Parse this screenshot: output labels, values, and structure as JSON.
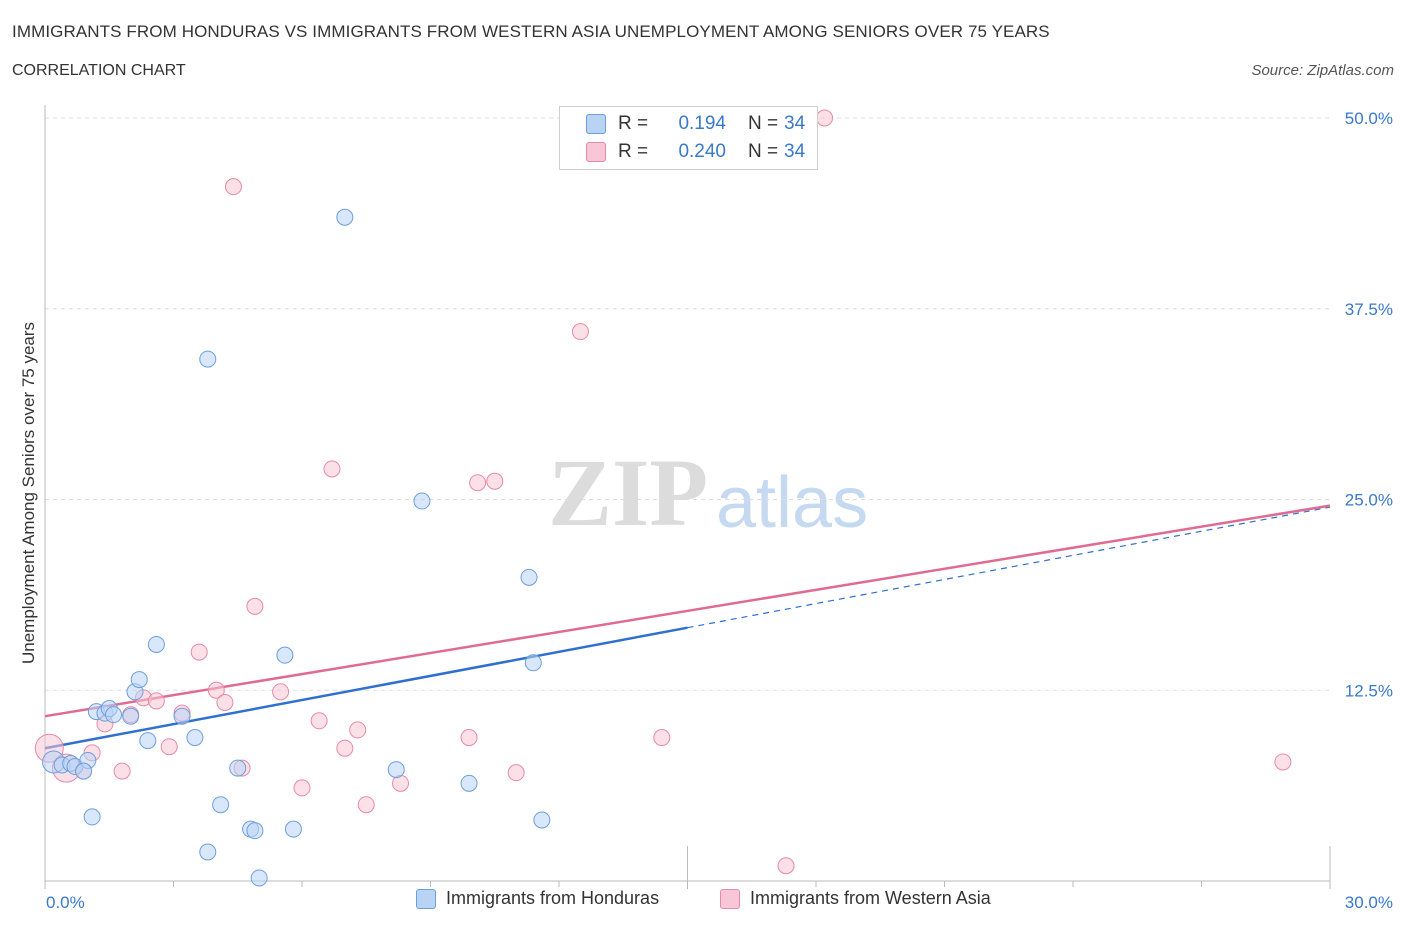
{
  "header": {
    "title": "IMMIGRANTS FROM HONDURAS VS IMMIGRANTS FROM WESTERN ASIA UNEMPLOYMENT AMONG SENIORS OVER 75 YEARS",
    "subtitle": "CORRELATION CHART",
    "source": "Source: ZipAtlas.com"
  },
  "watermark": {
    "zip": "ZIP",
    "atlas": "atlas"
  },
  "legend": {
    "r_label": "R =",
    "n_label": "N =",
    "series1": {
      "r": "0.194",
      "n": "34"
    },
    "series2": {
      "r": "0.240",
      "n": "34"
    }
  },
  "colors": {
    "blue_fill": "#b9d3f5",
    "blue_stroke": "#6d9fdc",
    "blue_line": "#2f6fcf",
    "pink_fill": "#f8c6d6",
    "pink_stroke": "#e68aa8",
    "pink_line": "#e06b92",
    "grid": "#dddddd",
    "tick_text": "#3a78c9"
  },
  "chart_data": {
    "type": "scatter",
    "title": "IMMIGRANTS FROM HONDURAS VS IMMIGRANTS FROM WESTERN ASIA UNEMPLOYMENT AMONG SENIORS OVER 75 YEARS",
    "xlabel": "",
    "ylabel": "Unemployment Among Seniors over 75 years",
    "xlim": [
      0,
      30
    ],
    "ylim": [
      0,
      50
    ],
    "x_tick_labels": [
      "0.0%",
      "30.0%"
    ],
    "y_ticks": [
      12.5,
      25.0,
      37.5,
      50.0
    ],
    "y_tick_labels": [
      "12.5%",
      "25.0%",
      "37.5%",
      "50.0%"
    ],
    "grid": true,
    "legend_position": "top-center",
    "series": [
      {
        "name": "Immigrants from Honduras",
        "color": "blue",
        "r": 0.194,
        "n": 34,
        "trend": {
          "x": [
            0,
            15
          ],
          "y": [
            8.7,
            16.6
          ],
          "dashed_to": [
            30,
            24.5
          ]
        },
        "points": [
          [
            0.2,
            7.8
          ],
          [
            0.4,
            7.6
          ],
          [
            0.6,
            7.7
          ],
          [
            0.7,
            7.5
          ],
          [
            1.0,
            7.9
          ],
          [
            1.1,
            4.2
          ],
          [
            1.2,
            11.1
          ],
          [
            1.4,
            11.0
          ],
          [
            1.5,
            11.3
          ],
          [
            2.0,
            10.8
          ],
          [
            2.1,
            12.4
          ],
          [
            2.2,
            13.2
          ],
          [
            2.4,
            9.2
          ],
          [
            2.6,
            15.5
          ],
          [
            3.2,
            10.8
          ],
          [
            3.5,
            9.4
          ],
          [
            3.8,
            1.9
          ],
          [
            3.8,
            34.2
          ],
          [
            4.1,
            5.0
          ],
          [
            4.5,
            7.4
          ],
          [
            4.8,
            3.4
          ],
          [
            4.9,
            3.3
          ],
          [
            5.0,
            0.2
          ],
          [
            5.6,
            14.8
          ],
          [
            5.8,
            3.4
          ],
          [
            7.0,
            43.5
          ],
          [
            8.2,
            7.3
          ],
          [
            8.8,
            24.9
          ],
          [
            9.9,
            6.4
          ],
          [
            11.3,
            19.9
          ],
          [
            11.4,
            14.3
          ],
          [
            11.6,
            4.0
          ],
          [
            0.9,
            7.2
          ],
          [
            1.6,
            10.9
          ]
        ]
      },
      {
        "name": "Immigrants from Western Asia",
        "color": "pink",
        "r": 0.24,
        "n": 34,
        "trend": {
          "x": [
            0,
            30
          ],
          "y": [
            10.8,
            24.6
          ]
        },
        "points": [
          [
            0.1,
            8.7
          ],
          [
            0.5,
            7.4
          ],
          [
            0.9,
            7.2
          ],
          [
            1.1,
            8.4
          ],
          [
            1.4,
            10.3
          ],
          [
            1.8,
            7.2
          ],
          [
            2.0,
            10.9
          ],
          [
            2.3,
            12.0
          ],
          [
            2.6,
            11.8
          ],
          [
            2.9,
            8.8
          ],
          [
            3.2,
            11.0
          ],
          [
            3.6,
            15.0
          ],
          [
            4.0,
            12.5
          ],
          [
            4.2,
            11.7
          ],
          [
            4.6,
            7.4
          ],
          [
            4.9,
            18.0
          ],
          [
            5.5,
            12.4
          ],
          [
            6.0,
            6.1
          ],
          [
            6.4,
            10.5
          ],
          [
            6.7,
            27.0
          ],
          [
            7.0,
            8.7
          ],
          [
            7.3,
            9.9
          ],
          [
            7.5,
            5.0
          ],
          [
            8.3,
            6.4
          ],
          [
            9.9,
            9.4
          ],
          [
            10.1,
            26.1
          ],
          [
            10.5,
            26.2
          ],
          [
            11.0,
            7.1
          ],
          [
            12.5,
            36.0
          ],
          [
            14.4,
            9.4
          ],
          [
            17.3,
            1.0
          ],
          [
            18.2,
            50.0
          ],
          [
            4.4,
            45.5
          ],
          [
            28.9,
            7.8
          ]
        ]
      }
    ]
  },
  "bottom_legend": {
    "series1_label": "Immigrants from Honduras",
    "series2_label": "Immigrants from Western Asia"
  }
}
